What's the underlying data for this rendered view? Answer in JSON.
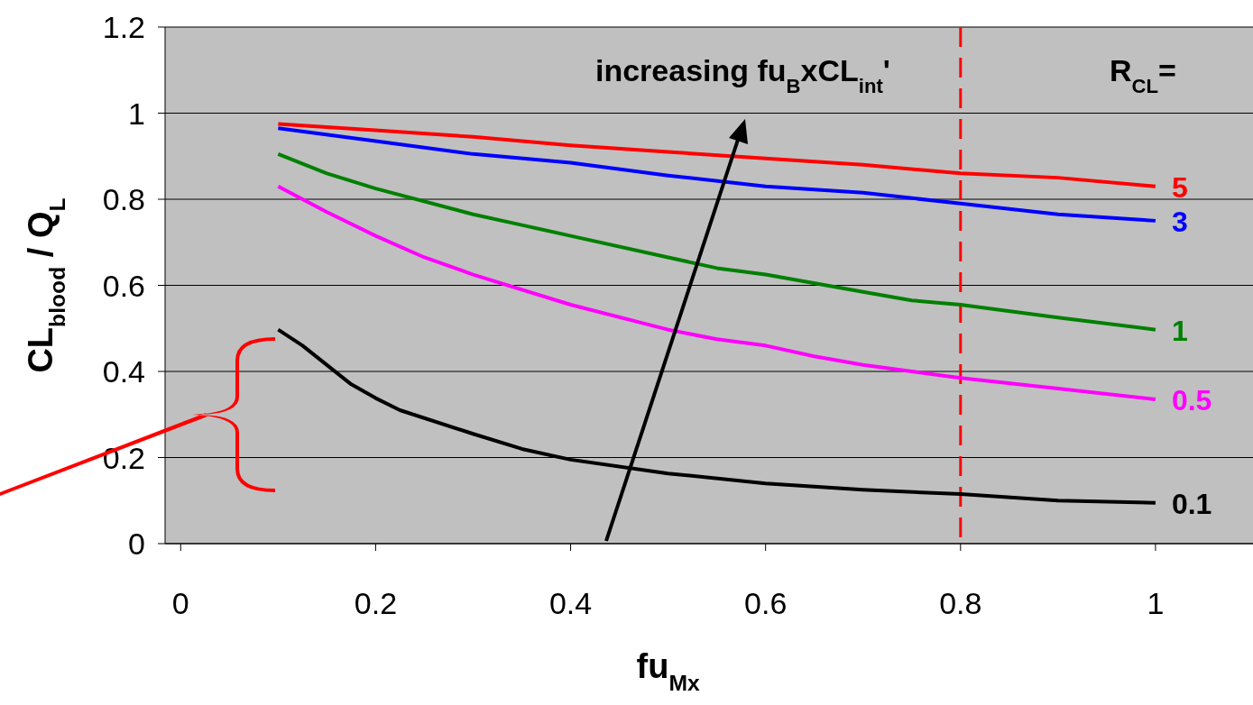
{
  "chart_data": {
    "type": "line",
    "xlabel": "fu$_{Mx}$",
    "ylabel": "CL$_{blood}$ / Q$_{L}$",
    "xlim": [
      -0.016,
      1.1
    ],
    "ylim": [
      0,
      1.2
    ],
    "xticks": [
      0,
      0.2,
      0.4,
      0.6,
      0.8,
      1
    ],
    "yticks": [
      0,
      0.2,
      0.4,
      0.6,
      0.8,
      1,
      1.2
    ],
    "grid": "y",
    "legend": false,
    "annotations": [
      "increasing fu$_{B}$xCL$_{int}$'",
      "R$_{CL}$="
    ],
    "ref_lines": [
      {
        "axis": "x",
        "value": 0.8,
        "color": "#ff0000",
        "line_style": "dashed"
      }
    ],
    "series": [
      {
        "name": "5",
        "color": "#ff0000",
        "x": [
          0.1,
          0.2,
          0.3,
          0.4,
          0.5,
          0.6,
          0.7,
          0.8,
          0.9,
          1
        ],
        "values": [
          0.975,
          0.96,
          0.945,
          0.925,
          0.91,
          0.895,
          0.88,
          0.86,
          0.85,
          0.83
        ]
      },
      {
        "name": "3",
        "color": "#0000ff",
        "x": [
          0.1,
          0.2,
          0.3,
          0.4,
          0.5,
          0.6,
          0.7,
          0.8,
          0.9,
          1
        ],
        "values": [
          0.965,
          0.935,
          0.905,
          0.885,
          0.855,
          0.83,
          0.815,
          0.79,
          0.765,
          0.75
        ]
      },
      {
        "name": "1",
        "color": "#008000",
        "x": [
          0.1,
          0.15,
          0.2,
          0.3,
          0.35,
          0.4,
          0.5,
          0.55,
          0.6,
          0.7,
          0.75,
          0.8,
          0.9,
          1
        ],
        "values": [
          0.905,
          0.86,
          0.825,
          0.765,
          0.74,
          0.715,
          0.665,
          0.64,
          0.625,
          0.585,
          0.565,
          0.555,
          0.525,
          0.497
        ]
      },
      {
        "name": "0.5",
        "color": "#ff00ff",
        "x": [
          0.1,
          0.15,
          0.2,
          0.25,
          0.3,
          0.4,
          0.5,
          0.55,
          0.6,
          0.65,
          0.7,
          0.75,
          0.8,
          0.9,
          1
        ],
        "values": [
          0.83,
          0.77,
          0.715,
          0.665,
          0.625,
          0.555,
          0.497,
          0.475,
          0.46,
          0.435,
          0.415,
          0.4,
          0.385,
          0.36,
          0.335
        ]
      },
      {
        "name": "0.1",
        "color": "#000000",
        "x": [
          0.1,
          0.125,
          0.15,
          0.175,
          0.2,
          0.225,
          0.3,
          0.35,
          0.4,
          0.5,
          0.6,
          0.7,
          0.8,
          0.9,
          1
        ],
        "values": [
          0.497,
          0.46,
          0.415,
          0.37,
          0.338,
          0.31,
          0.255,
          0.22,
          0.195,
          0.163,
          0.14,
          0.125,
          0.115,
          0.1,
          0.095
        ]
      }
    ]
  }
}
